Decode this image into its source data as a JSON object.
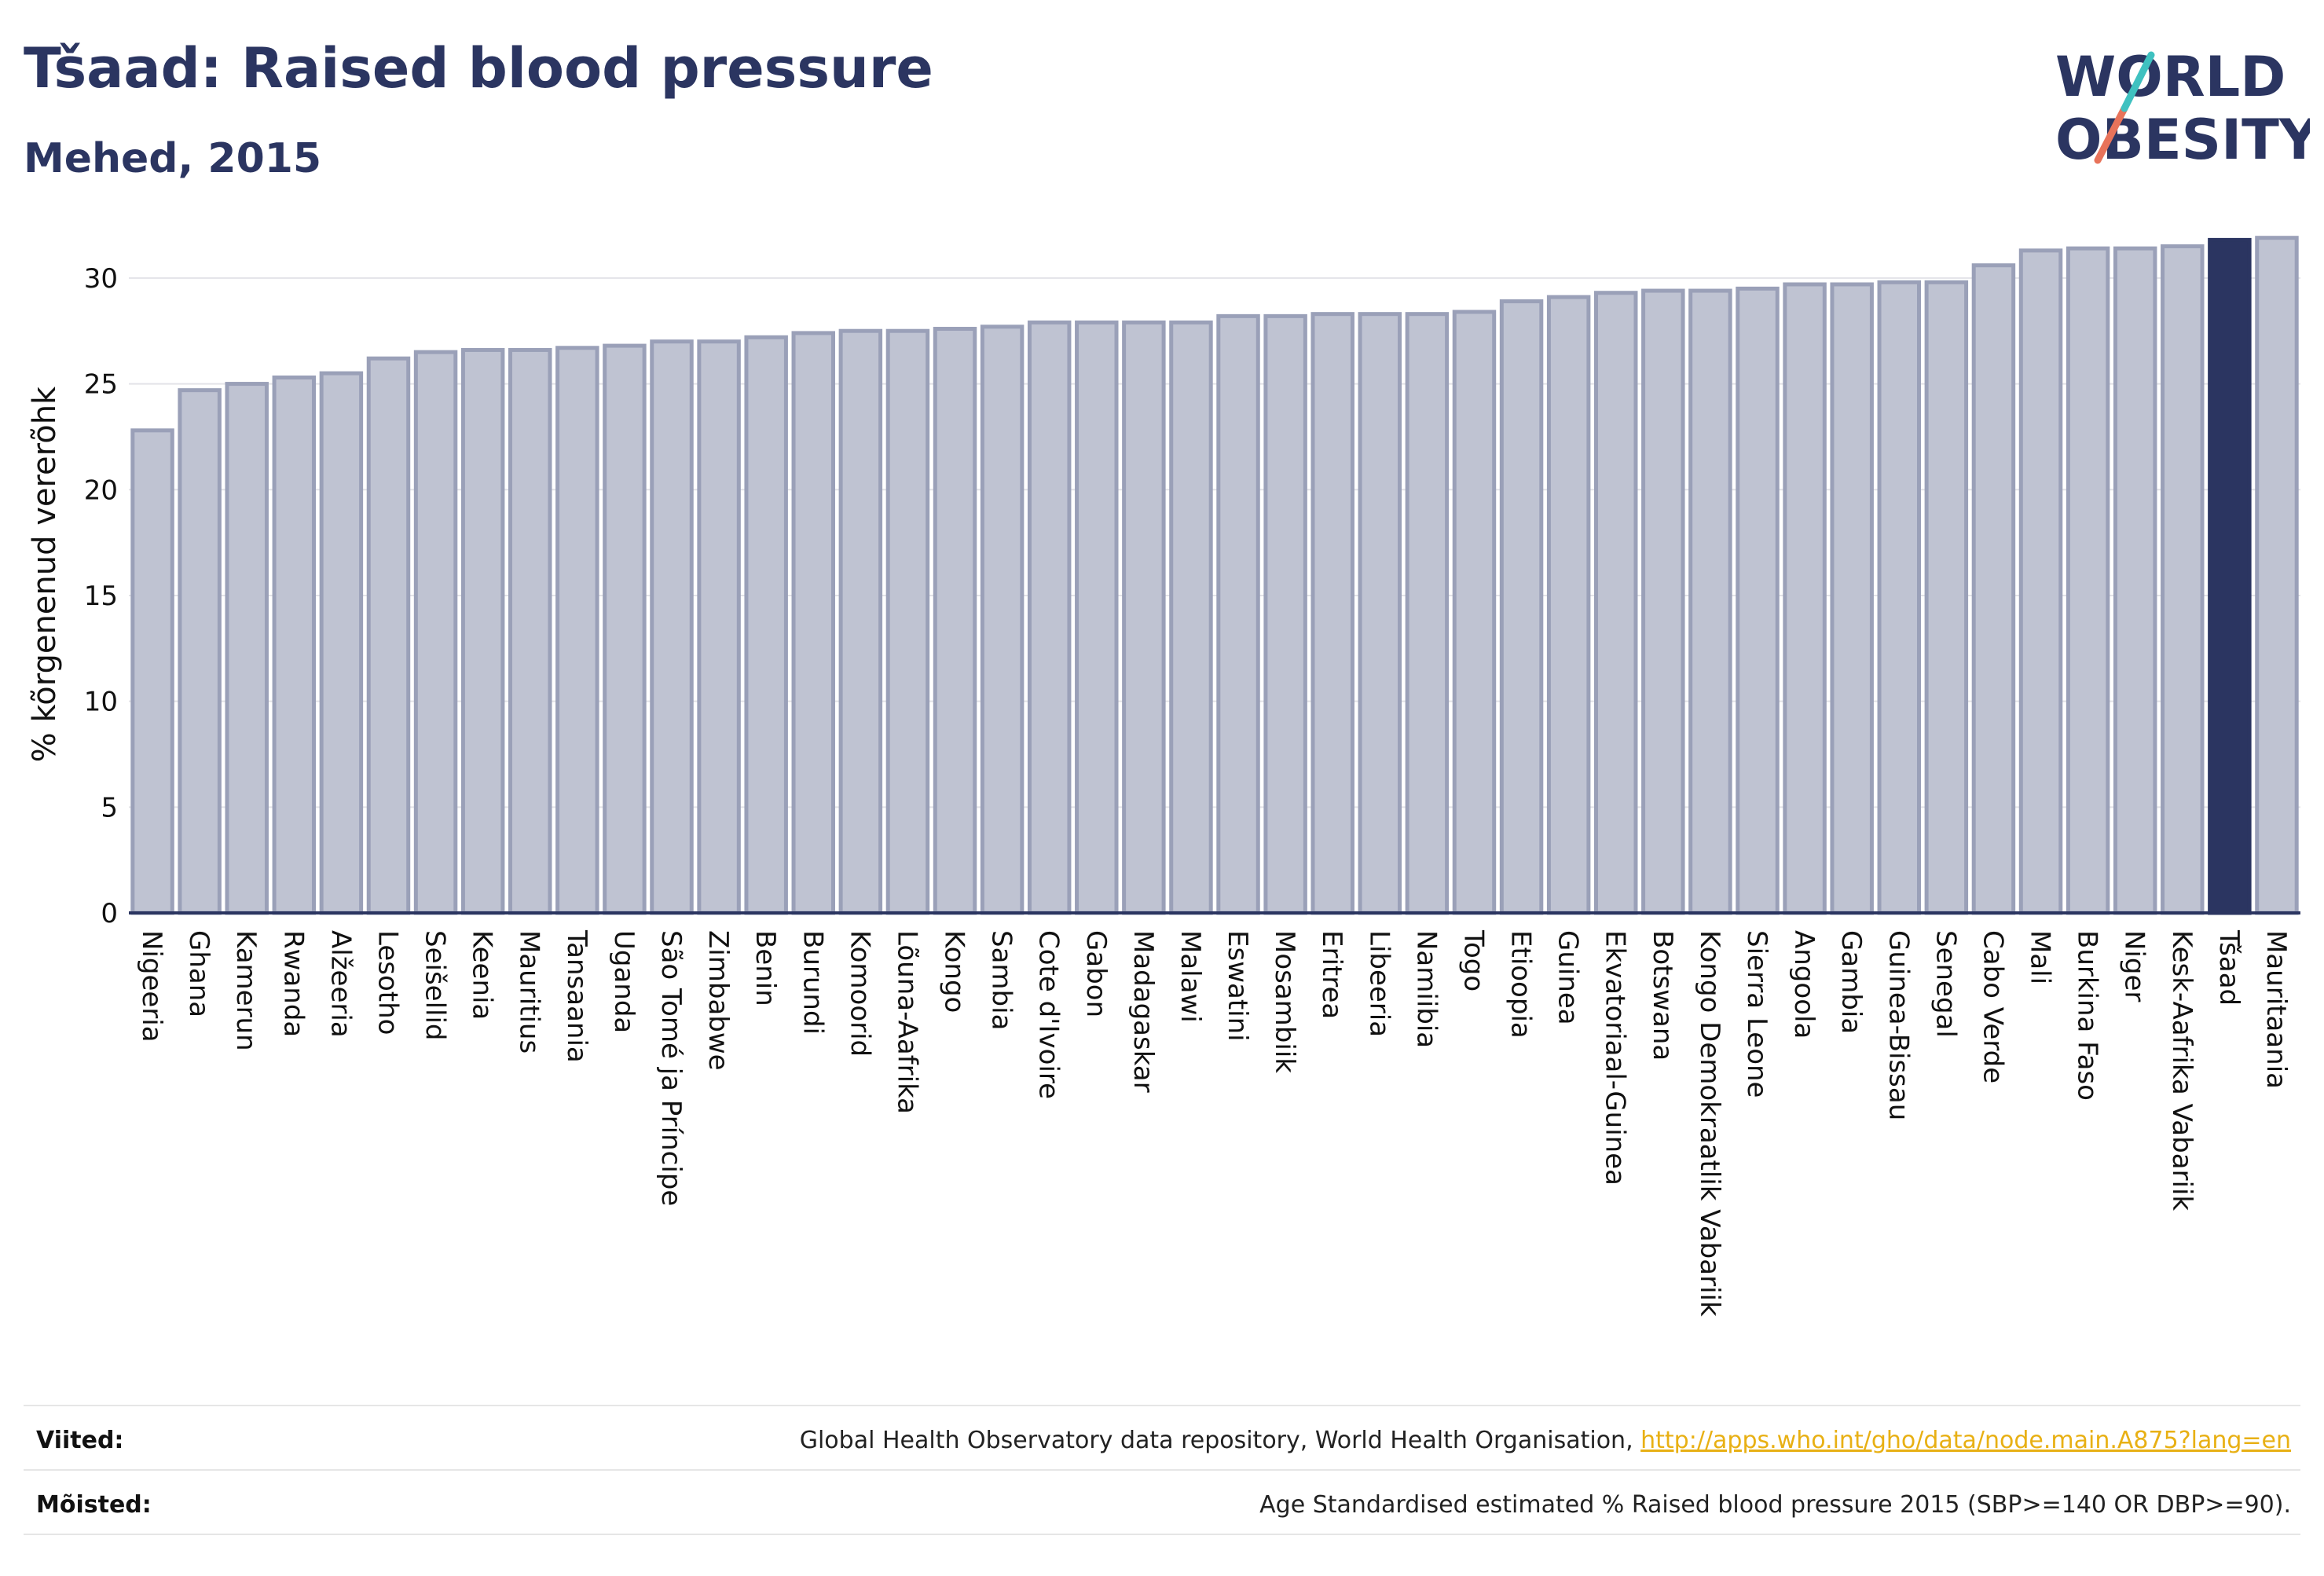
{
  "header": {
    "title": "Tšaad: Raised blood pressure",
    "subtitle": "Mehed, 2015"
  },
  "logo": {
    "line1": "WORLD",
    "line2": "OBESITY"
  },
  "colors": {
    "bar": "#bfc3d2",
    "bar_stroke": "#9aa0b8",
    "highlight": "#2b3561",
    "text": "#2b3561"
  },
  "chart_data": {
    "type": "bar",
    "ylabel": "% kõrgenenud vererõhk",
    "ylim": [
      0,
      32
    ],
    "yticks": [
      0,
      5,
      10,
      15,
      20,
      25,
      30
    ],
    "grid": true,
    "highlight": "Tšaad",
    "categories": [
      "Nigeeria",
      "Ghana",
      "Kamerun",
      "Rwanda",
      "Alžeeria",
      "Lesotho",
      "Seišellid",
      "Keenia",
      "Mauritius",
      "Tansaania",
      "Uganda",
      "São Tomé ja Príncipe",
      "Zimbabwe",
      "Benin",
      "Burundi",
      "Komoorid",
      "Lõuna-Aafrika",
      "Kongo",
      "Sambia",
      "Cote d'Ivoire",
      "Gabon",
      "Madagaskar",
      "Malawi",
      "Eswatini",
      "Mosambiik",
      "Eritrea",
      "Libeeria",
      "Namiibia",
      "Togo",
      "Etioopia",
      "Guinea",
      "Ekvatoriaal-Guinea",
      "Botswana",
      "Kongo Demokraatlik Vabariik",
      "Sierra Leone",
      "Angoola",
      "Gambia",
      "Guinea-Bissau",
      "Senegal",
      "Cabo Verde",
      "Mali",
      "Burkina Faso",
      "Niger",
      "Kesk-Aafrika Vabariik",
      "Tšaad",
      "Mauritaania"
    ],
    "values": [
      22.8,
      24.7,
      25.0,
      25.3,
      25.5,
      26.2,
      26.5,
      26.6,
      26.6,
      26.7,
      26.8,
      27.0,
      27.0,
      27.2,
      27.4,
      27.5,
      27.5,
      27.6,
      27.7,
      27.9,
      27.9,
      27.9,
      27.9,
      28.2,
      28.2,
      28.3,
      28.3,
      28.3,
      28.4,
      28.9,
      29.1,
      29.3,
      29.4,
      29.4,
      29.5,
      29.7,
      29.7,
      29.8,
      29.8,
      30.6,
      31.3,
      31.4,
      31.4,
      31.5,
      31.8,
      31.9
    ]
  },
  "footer": {
    "sources_label": "Viited:",
    "sources_text": "Global Health Observatory data repository, World Health Organisation, ",
    "sources_link": "http://apps.who.int/gho/data/node.main.A875?lang=en",
    "definitions_label": "Mõisted:",
    "definitions_text": "Age Standardised estimated % Raised blood pressure 2015 (SBP>=140 OR DBP>=90)."
  }
}
